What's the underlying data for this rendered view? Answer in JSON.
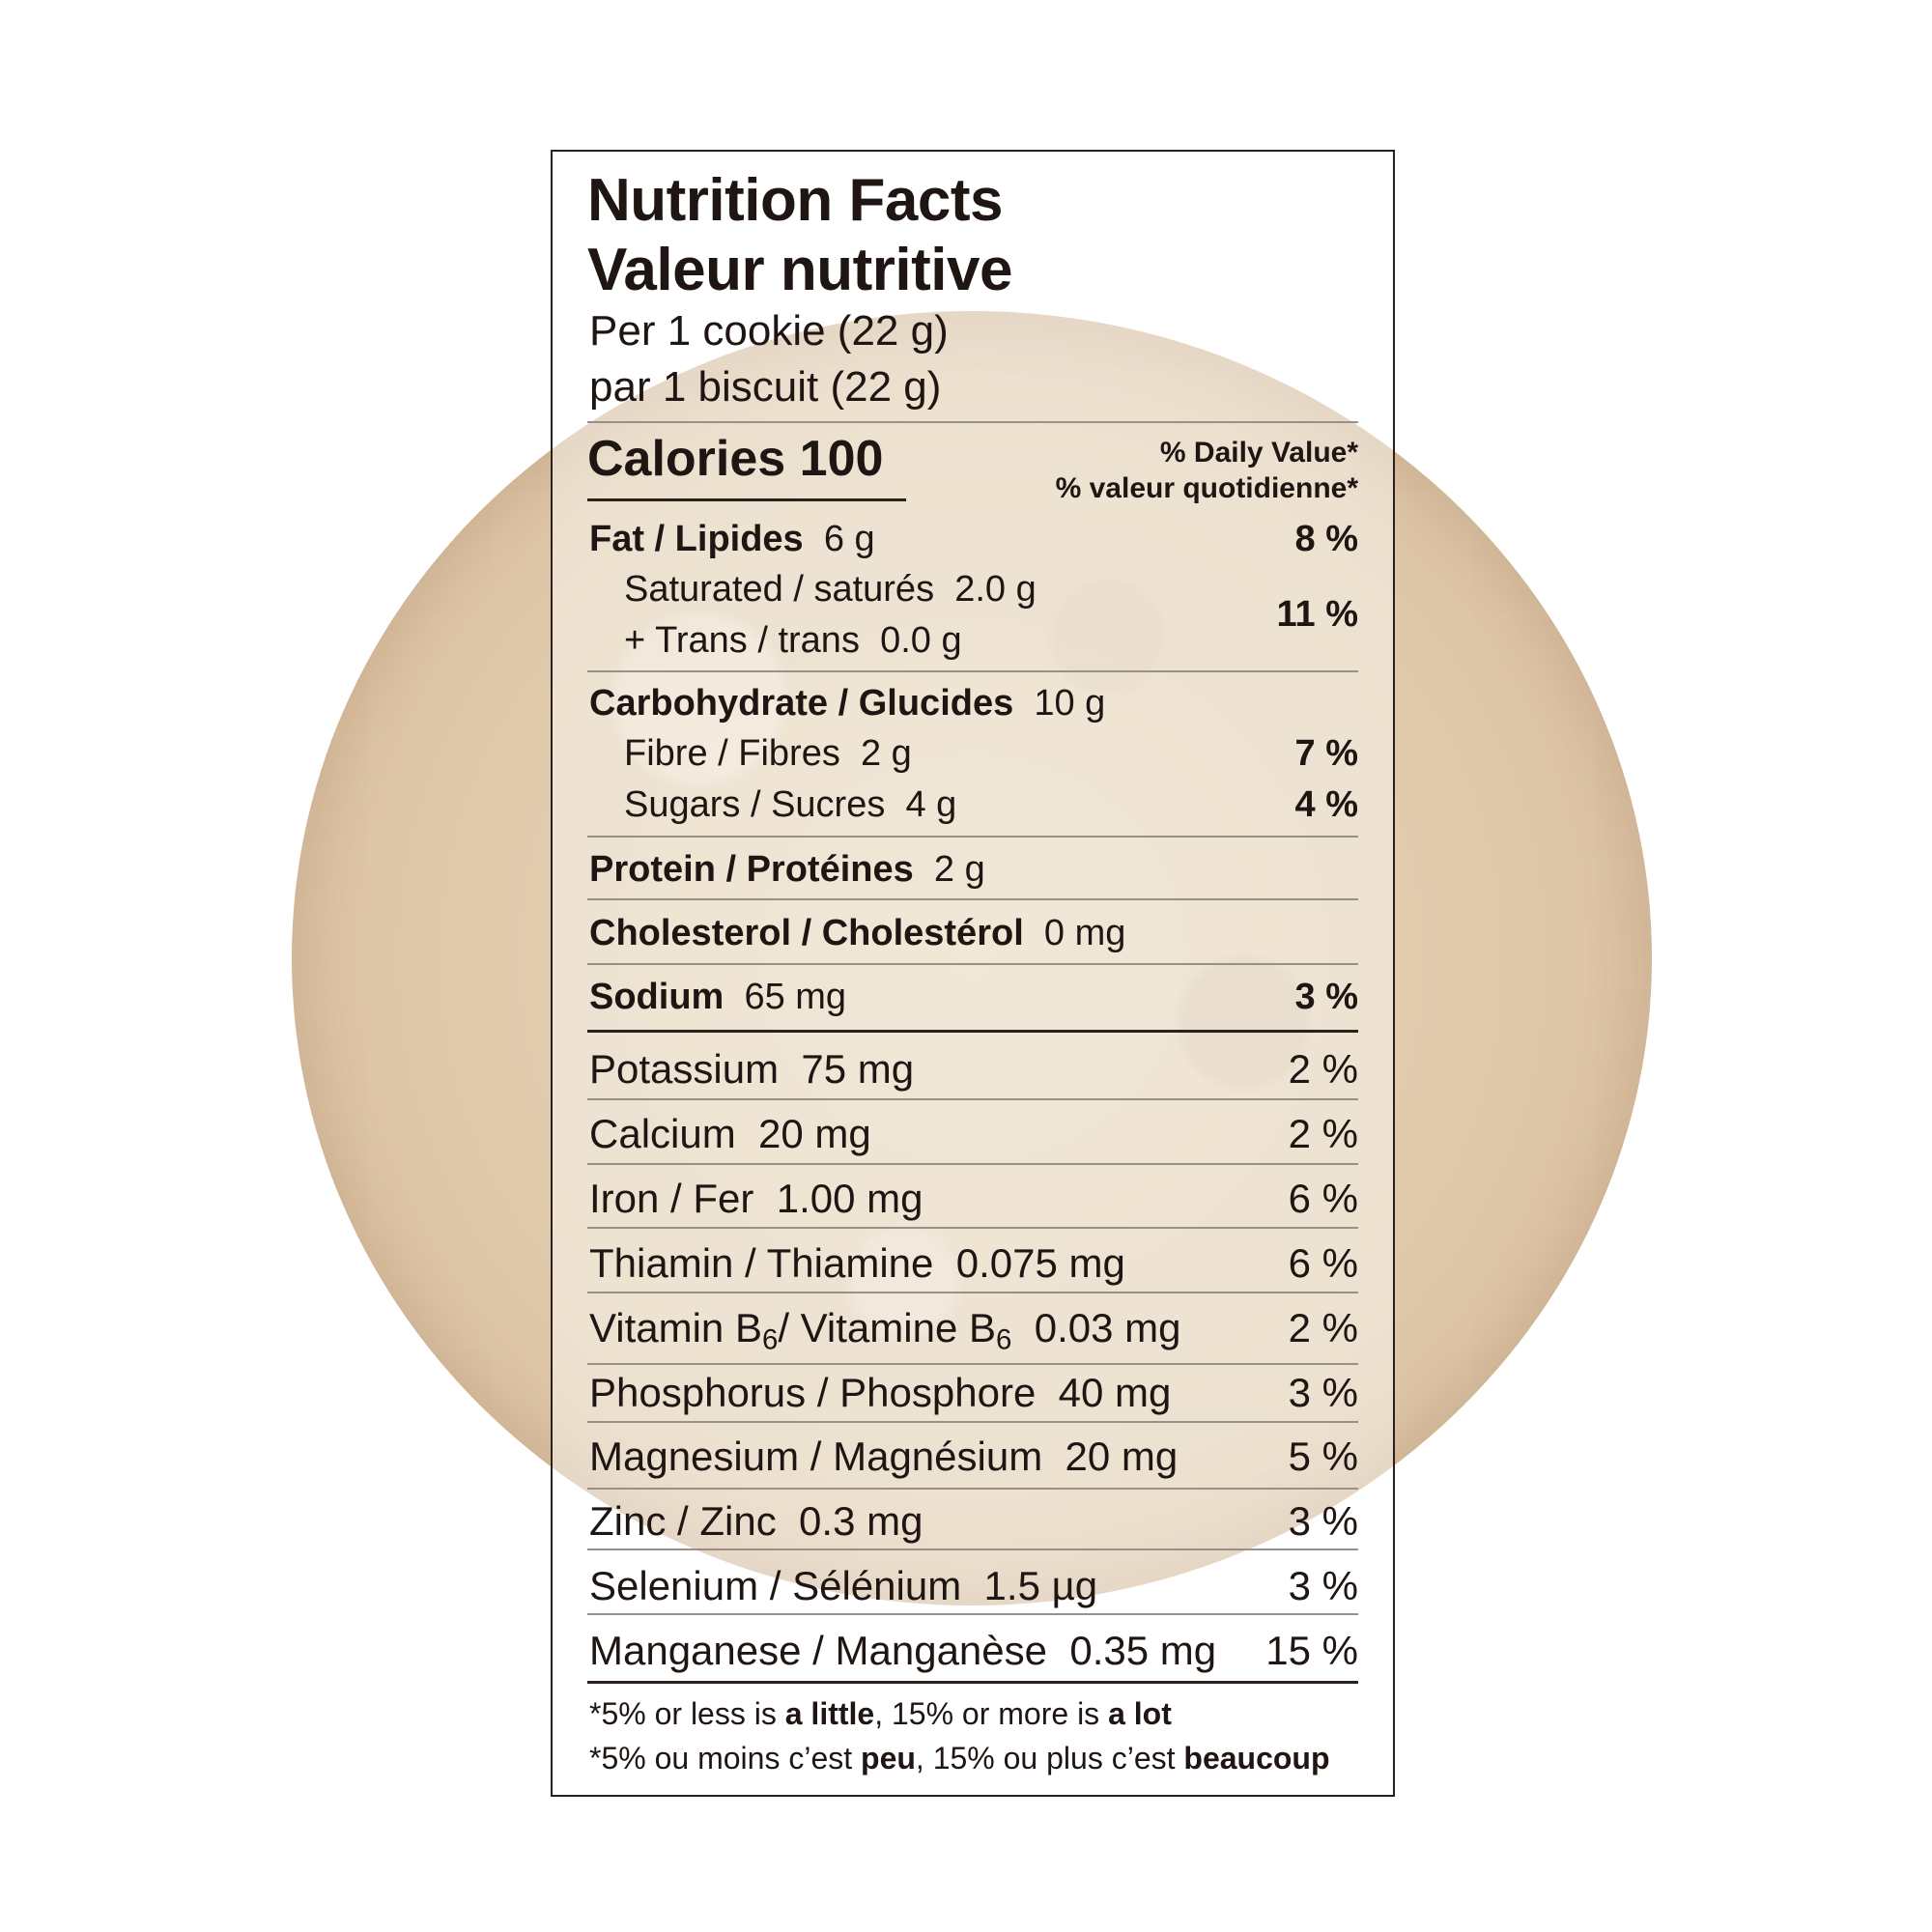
{
  "title_en": "Nutrition Facts",
  "title_fr": "Valeur nutritive",
  "serving_en": "Per 1 cookie (22 g)",
  "serving_fr": "par 1 biscuit (22 g)",
  "calories_label": "Calories",
  "calories_value": "100",
  "dv_en": "% Daily Value*",
  "dv_fr": "% valeur quotidienne*",
  "fat": {
    "label": "Fat /  Lipides",
    "amount": "6 g",
    "pct": "8 %"
  },
  "saturated": {
    "label": "Saturated / saturés",
    "amount": "2.0 g"
  },
  "trans": {
    "label": "+ Trans / trans",
    "amount": "0.0 g"
  },
  "sat_trans_pct": "11 %",
  "carb": {
    "label": "Carbohydrate / Glucides",
    "amount": "10 g"
  },
  "fibre": {
    "label": "Fibre / Fibres",
    "amount": "2 g",
    "pct": "7 %"
  },
  "sugars": {
    "label": "Sugars / Sucres",
    "amount": "4 g",
    "pct": "4 %"
  },
  "protein": {
    "label": "Protein / Protéines",
    "amount": "2 g"
  },
  "cholesterol": {
    "label": "Cholesterol / Cholestérol",
    "amount": "0 mg"
  },
  "sodium": {
    "label": "Sodium",
    "amount": "65 mg",
    "pct": "3 %"
  },
  "potassium": {
    "label": "Potassium",
    "amount": "75 mg",
    "pct": "2 %"
  },
  "calcium": {
    "label": "Calcium",
    "amount": "20 mg",
    "pct": "2 %"
  },
  "iron": {
    "label": "Iron /  Fer",
    "amount": "1.00 mg",
    "pct": "6 %"
  },
  "thiamin": {
    "label": "Thiamin /  Thiamine",
    "amount": "0.075 mg",
    "pct": "6 %"
  },
  "vitb6": {
    "label_a": "Vitamin B",
    "label_b": "/  Vitamine B",
    "sub": "6",
    "amount": "0.03 mg",
    "pct": "2 %"
  },
  "phosphorus": {
    "label": "Phosphorus /  Phosphore",
    "amount": "40 mg",
    "pct": "3 %"
  },
  "magnesium": {
    "label": "Magnesium /  Magnésium",
    "amount": "20 mg",
    "pct": "5 %"
  },
  "zinc": {
    "label": "Zinc /  Zinc",
    "amount": "0.3 mg",
    "pct": "3 %"
  },
  "selenium": {
    "label": "Selenium /  Sélénium",
    "amount": "1.5 µg",
    "pct": "3 %"
  },
  "manganese": {
    "label": "Manganese /  Manganèse",
    "amount": "0.35 mg",
    "pct": "15 %"
  },
  "footnote_en": {
    "a": "*5% or less is ",
    "b": "a little",
    "c": ", 15% or more is ",
    "d": "a lot"
  },
  "footnote_fr": {
    "a": "*5% ou moins c’est ",
    "b": "peu",
    "c": ", 15% ou plus c’est ",
    "d": "beaucoup"
  }
}
